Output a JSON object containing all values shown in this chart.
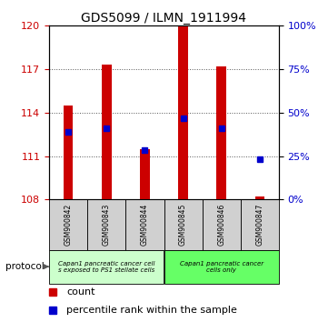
{
  "title": "GDS5099 / ILMN_1911994",
  "samples": [
    "GSM900842",
    "GSM900843",
    "GSM900844",
    "GSM900845",
    "GSM900846",
    "GSM900847"
  ],
  "red_values": [
    114.5,
    117.3,
    111.5,
    120.0,
    117.2,
    108.2
  ],
  "blue_values": [
    112.7,
    112.9,
    111.4,
    113.6,
    112.9,
    110.8
  ],
  "ylim": [
    108,
    120
  ],
  "yticks_left": [
    108,
    111,
    114,
    117,
    120
  ],
  "yticks_right": [
    0,
    25,
    50,
    75,
    100
  ],
  "yticks_right_vals": [
    108,
    111,
    114,
    117,
    120
  ],
  "red_color": "#cc0000",
  "blue_color": "#0000cc",
  "bar_bottom": 108,
  "proto_group1_color": "#ccffcc",
  "proto_group2_color": "#66ff66",
  "proto_group1_label": "Capan1 pancreatic cancer cell\ns exposed to PS1 stellate cells",
  "proto_group2_label": "Capan1 pancreatic cancer\ncells only",
  "protocol_label": "protocol",
  "legend_count": "count",
  "legend_percentile": "percentile rank within the sample",
  "grid_linestyle": ":",
  "grid_color": "#555555",
  "left_tick_color": "#cc0000",
  "right_tick_color": "#0000cc",
  "title_fontsize": 10,
  "tick_fontsize": 8,
  "bar_width": 0.25,
  "sample_box_color": "#d0d0d0"
}
